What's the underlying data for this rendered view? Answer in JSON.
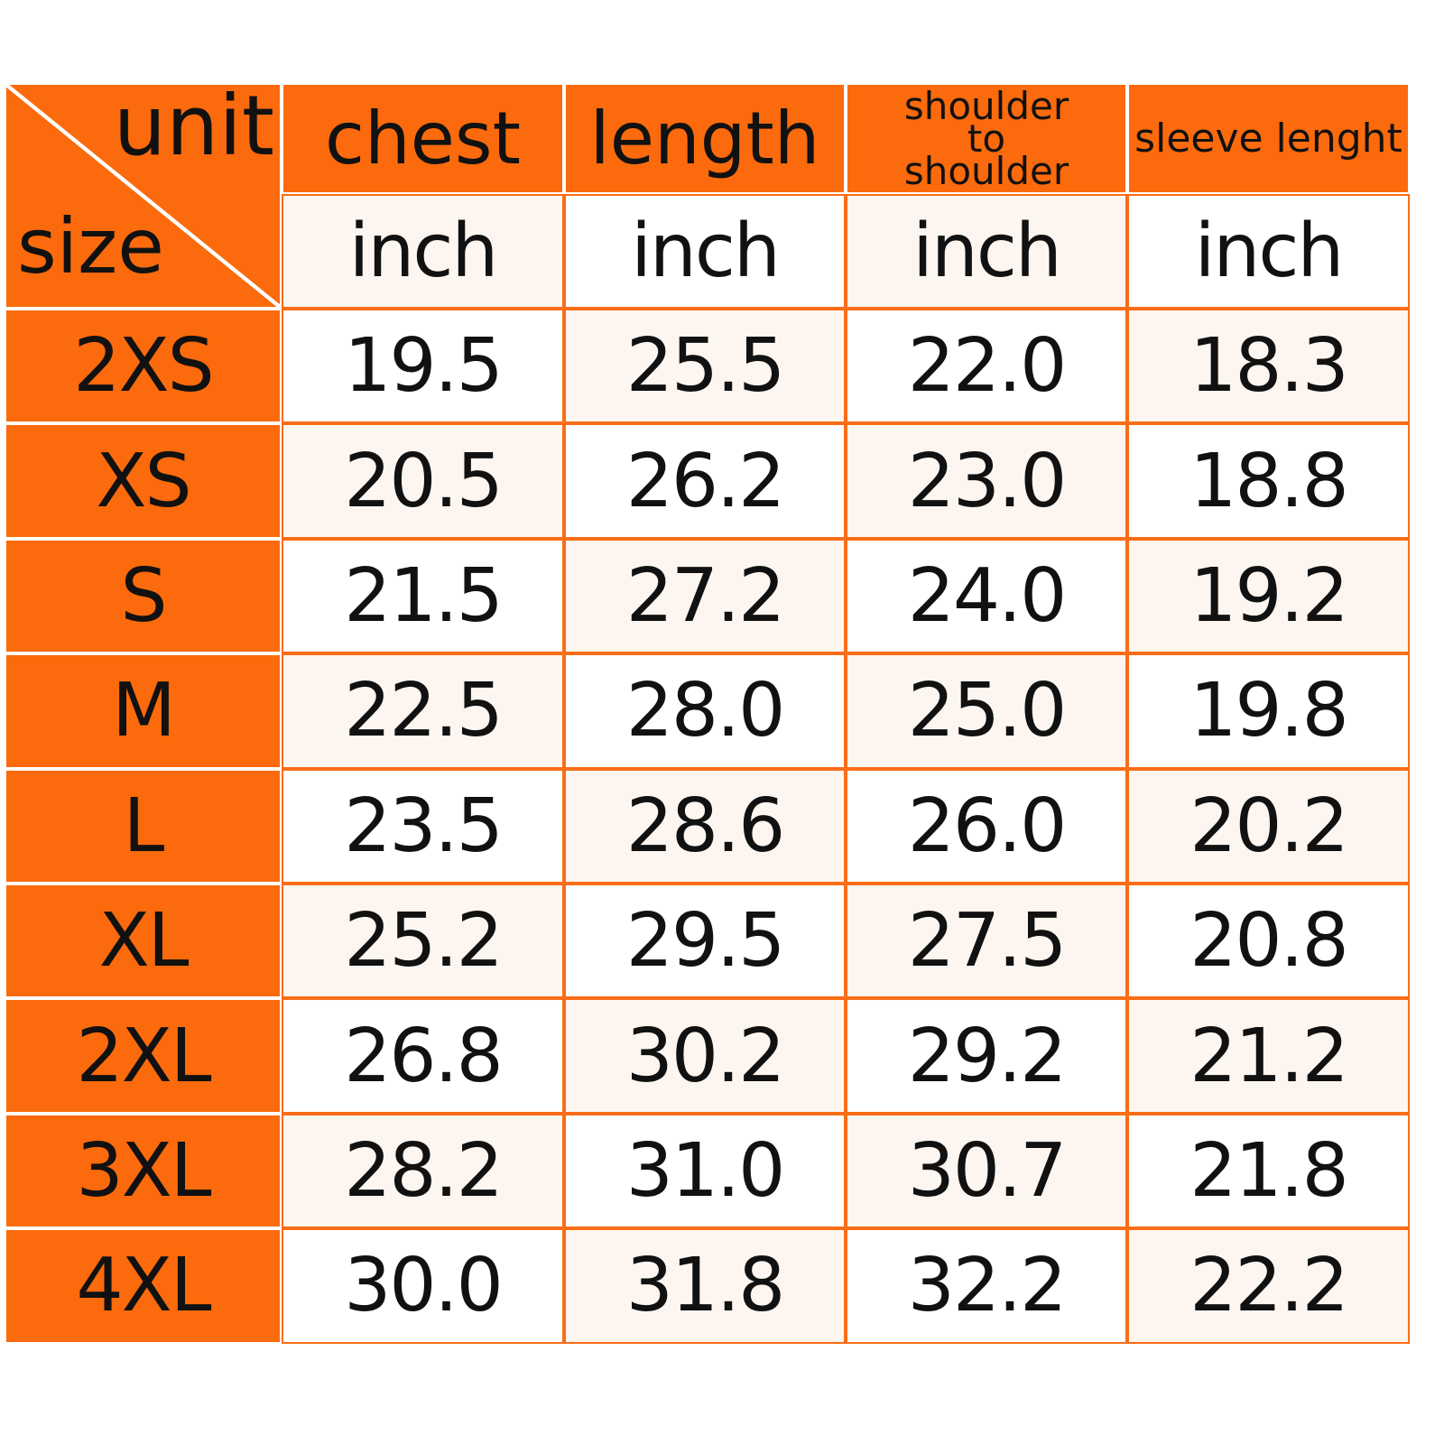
{
  "colors": {
    "header": "#fb6a0c",
    "grid_line": "#f96d17",
    "cream": "#fdf6f0"
  },
  "corner": {
    "unit": "unit",
    "size": "size"
  },
  "headers": [
    {
      "label": "chest"
    },
    {
      "label": "length"
    },
    {
      "label_lines": [
        "shoulder",
        "to",
        "shoulder"
      ]
    },
    {
      "label": "sleeve lenght"
    }
  ],
  "units": [
    "inch",
    "inch",
    "inch",
    "inch"
  ],
  "rows": [
    {
      "size": "2XS",
      "values": [
        "19.5",
        "25.5",
        "22.0",
        "18.3"
      ]
    },
    {
      "size": "XS",
      "values": [
        "20.5",
        "26.2",
        "23.0",
        "18.8"
      ]
    },
    {
      "size": "S",
      "values": [
        "21.5",
        "27.2",
        "24.0",
        "19.2"
      ]
    },
    {
      "size": "M",
      "values": [
        "22.5",
        "28.0",
        "25.0",
        "19.8"
      ]
    },
    {
      "size": "L",
      "values": [
        "23.5",
        "28.6",
        "26.0",
        "20.2"
      ]
    },
    {
      "size": "XL",
      "values": [
        "25.2",
        "29.5",
        "27.5",
        "20.8"
      ]
    },
    {
      "size": "2XL",
      "values": [
        "26.8",
        "30.2",
        "29.2",
        "21.2"
      ]
    },
    {
      "size": "3XL",
      "values": [
        "28.2",
        "31.0",
        "30.7",
        "21.8"
      ]
    },
    {
      "size": "4XL",
      "values": [
        "30.0",
        "31.8",
        "32.2",
        "22.2"
      ]
    }
  ]
}
